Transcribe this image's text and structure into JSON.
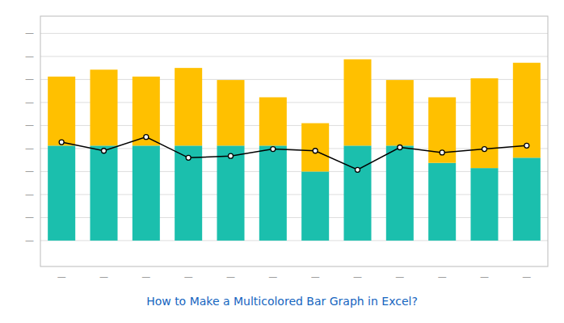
{
  "chart_data": {
    "type": "bar",
    "title": "How to Make a Multicolored Bar Graph in Excel?",
    "categories": [
      "—",
      "—",
      "—",
      "—",
      "—",
      "—",
      "—",
      "—",
      "—",
      "—",
      "—",
      "—"
    ],
    "stacked": true,
    "grid": true,
    "ylim": [
      -15,
      130
    ],
    "yticks": [
      {
        "value": 0,
        "label": "—"
      },
      {
        "value": 13.333333333333334,
        "label": "—"
      },
      {
        "value": 26.666666666666668,
        "label": "—"
      },
      {
        "value": 40,
        "label": "—"
      },
      {
        "value": 53.333333333333336,
        "label": "—"
      },
      {
        "value": 66.66666666666667,
        "label": "—"
      },
      {
        "value": 80,
        "label": "—"
      },
      {
        "value": 93.33333333333334,
        "label": "—"
      },
      {
        "value": 106.66666666666667,
        "label": "—"
      },
      {
        "value": 120,
        "label": "—"
      }
    ],
    "series": [
      {
        "type": "bar",
        "color": "#1BBFAD",
        "values": [
          55,
          55,
          55,
          55,
          55,
          55,
          40,
          55,
          55,
          45,
          42,
          48
        ]
      },
      {
        "type": "bar",
        "color": "#FFC000",
        "values": [
          40,
          44,
          40,
          45,
          38,
          28,
          28,
          50,
          38,
          38,
          52,
          55
        ]
      },
      {
        "type": "line",
        "color": "#000000",
        "marker": "circle",
        "values": [
          57,
          52,
          60,
          48,
          49,
          53,
          52,
          41,
          54,
          51,
          53,
          55
        ]
      }
    ]
  }
}
